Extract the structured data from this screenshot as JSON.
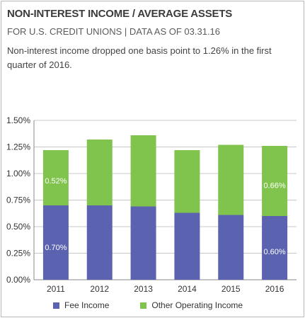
{
  "header": {
    "title": "NON-INTEREST INCOME / AVERAGE ASSETS",
    "subtitle": "FOR U.S. CREDIT UNIONS | DATA AS OF 03.31.16",
    "description": "Non-interest income dropped one basis point to 1.26% in the first quarter of 2016."
  },
  "colors": {
    "fee_income": "#5b63b0",
    "other_income": "#80c44e",
    "grid": "#c8c8c8",
    "axis": "#888888",
    "text": "#333333"
  },
  "chart_data": {
    "type": "bar",
    "stacked": true,
    "categories": [
      "2011",
      "2012",
      "2013",
      "2014",
      "2015",
      "2016"
    ],
    "series": [
      {
        "name": "Fee Income",
        "values": [
          0.7,
          0.7,
          0.69,
          0.63,
          0.61,
          0.6
        ]
      },
      {
        "name": "Other Operating Income",
        "values": [
          0.52,
          0.62,
          0.67,
          0.59,
          0.66,
          0.66
        ]
      }
    ],
    "yticks": [
      "0.00%",
      "0.25%",
      "0.50%",
      "0.75%",
      "1.00%",
      "1.25%",
      "1.50%"
    ],
    "ylim": [
      0,
      1.5
    ],
    "grid": true,
    "legend_position": "bottom",
    "data_labels": [
      {
        "series": 0,
        "index": 0,
        "text": "0.70%"
      },
      {
        "series": 1,
        "index": 0,
        "text": "0.52%"
      },
      {
        "series": 0,
        "index": 5,
        "text": "0.60%"
      },
      {
        "series": 1,
        "index": 5,
        "text": "0.66%"
      }
    ]
  }
}
